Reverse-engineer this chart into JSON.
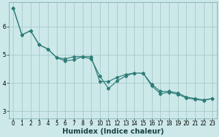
{
  "title": "",
  "xlabel": "Humidex (Indice chaleur)",
  "ylabel": "",
  "bg_color": "#cce8e8",
  "line_color": "#2d7d78",
  "grid_color": "#aacccc",
  "x": [
    0,
    1,
    2,
    3,
    4,
    5,
    6,
    7,
    8,
    9,
    10,
    11,
    12,
    13,
    14,
    15,
    16,
    17,
    18,
    19,
    20,
    21,
    22,
    23
  ],
  "line1": [
    6.65,
    5.7,
    5.85,
    5.35,
    5.2,
    4.9,
    4.85,
    4.93,
    4.93,
    4.93,
    4.05,
    4.05,
    4.2,
    4.3,
    4.35,
    4.35,
    3.95,
    3.7,
    3.7,
    3.65,
    3.5,
    3.45,
    3.4,
    3.45
  ],
  "line2": [
    6.65,
    5.7,
    5.85,
    5.35,
    5.2,
    4.9,
    4.78,
    4.82,
    4.93,
    4.85,
    4.25,
    3.8,
    4.07,
    4.25,
    4.35,
    4.35,
    3.9,
    3.62,
    3.67,
    3.6,
    3.47,
    3.42,
    3.38,
    3.45
  ],
  "ylim": [
    2.75,
    6.85
  ],
  "xlim": [
    -0.5,
    23.5
  ],
  "yticks": [
    3,
    4,
    5,
    6
  ],
  "xticks": [
    0,
    1,
    2,
    3,
    4,
    5,
    6,
    7,
    8,
    9,
    10,
    11,
    12,
    13,
    14,
    15,
    16,
    17,
    18,
    19,
    20,
    21,
    22,
    23
  ],
  "tick_fontsize": 5.5,
  "xlabel_fontsize": 7.5,
  "marker_size": 2.2,
  "line_width": 0.9
}
